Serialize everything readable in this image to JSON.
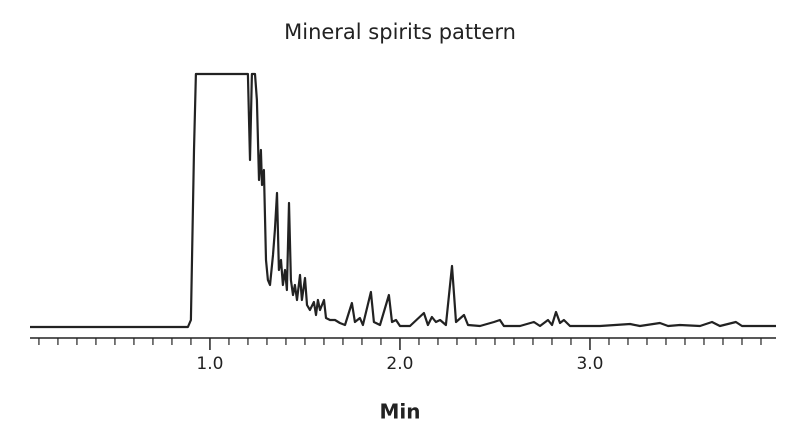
{
  "chart_data": {
    "type": "line",
    "title": "Mineral spirits pattern",
    "xlabel": "Min",
    "x": [
      0.053,
      0.884,
      0.9,
      0.916,
      0.926,
      1.2,
      1.211,
      1.221,
      1.237,
      1.247,
      1.258,
      1.268,
      1.274,
      1.284,
      1.295,
      1.305,
      1.316,
      1.332,
      1.342,
      1.353,
      1.363,
      1.374,
      1.384,
      1.395,
      1.405,
      1.416,
      1.426,
      1.437,
      1.447,
      1.458,
      1.474,
      1.484,
      1.5,
      1.511,
      1.526,
      1.547,
      1.558,
      1.568,
      1.579,
      1.6,
      1.611,
      1.632,
      1.658,
      1.684,
      1.711,
      1.747,
      1.763,
      1.789,
      1.805,
      1.847,
      1.863,
      1.895,
      1.942,
      1.958,
      1.979,
      2.0,
      2.053,
      2.126,
      2.147,
      2.168,
      2.189,
      2.211,
      2.242,
      2.274,
      2.295,
      2.337,
      2.358,
      2.421,
      2.495,
      2.526,
      2.547,
      2.632,
      2.705,
      2.737,
      2.779,
      2.8,
      2.821,
      2.842,
      2.863,
      2.895,
      3.053,
      3.211,
      3.263,
      3.368,
      3.411,
      3.474,
      3.579,
      3.642,
      3.684,
      3.768,
      3.8,
      3.979
    ],
    "series": [
      {
        "color": "#222222",
        "values": [
          1,
          1,
          8,
          178,
          254,
          254,
          168,
          254,
          254,
          228,
          148,
          178,
          143,
          158,
          68,
          48,
          43,
          73,
          98,
          135,
          58,
          68,
          43,
          58,
          38,
          125,
          48,
          33,
          43,
          28,
          53,
          28,
          50,
          23,
          18,
          26,
          13,
          28,
          18,
          28,
          10,
          8,
          8,
          5,
          3,
          25,
          6,
          10,
          3,
          36,
          6,
          3,
          33,
          6,
          8,
          2,
          2,
          15,
          3,
          11,
          6,
          8,
          3,
          62,
          6,
          13,
          3,
          2,
          6,
          8,
          2,
          2,
          6,
          2,
          8,
          3,
          16,
          5,
          8,
          2,
          2,
          4,
          2,
          5,
          2,
          3,
          2,
          6,
          2,
          6,
          2,
          2
        ]
      }
    ],
    "xlim": [
      0.053,
      3.979
    ],
    "ylim": [
      0,
      254
    ],
    "xticks": [
      {
        "value": 1,
        "label": "1.0"
      },
      {
        "value": 2,
        "label": "2.0"
      },
      {
        "value": 3,
        "label": "3.0"
      }
    ],
    "minor_xticks": [
      0.1,
      0.2,
      0.3,
      0.4,
      0.5,
      0.6,
      0.7,
      0.8,
      0.9,
      1.1,
      1.2,
      1.3,
      1.4,
      1.5,
      1.6,
      1.7,
      1.8,
      1.9,
      2.1,
      2.2,
      2.3,
      2.4,
      2.5,
      2.6,
      2.7,
      2.8,
      2.9,
      3.1,
      3.2,
      3.3,
      3.4,
      3.5,
      3.6,
      3.7,
      3.8,
      3.9
    ]
  }
}
